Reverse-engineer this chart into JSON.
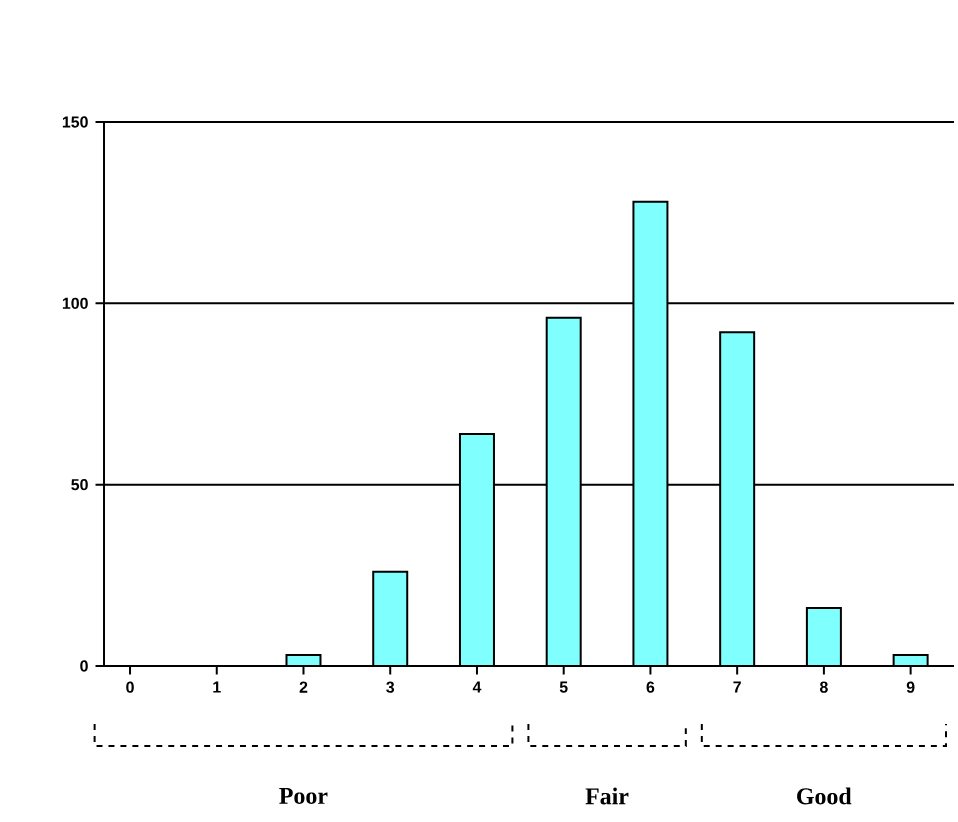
{
  "chart_data": {
    "type": "bar",
    "categories": [
      "0",
      "1",
      "2",
      "3",
      "4",
      "5",
      "6",
      "7",
      "8",
      "9"
    ],
    "values": [
      0,
      0,
      3,
      26,
      64,
      96,
      128,
      92,
      16,
      3
    ],
    "color": "#80ffff",
    "ylim": [
      0,
      150
    ],
    "yticks": [
      0,
      50,
      100,
      150
    ],
    "grid": "y",
    "annotations": [
      "Poor",
      "Fair",
      "Good"
    ]
  }
}
